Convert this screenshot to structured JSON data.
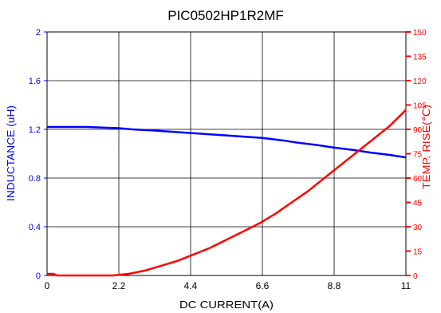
{
  "chart_data": {
    "type": "line",
    "title": "PIC0502HP1R2MF",
    "xlabel": "DC CURRENT(A)",
    "ylabel_left": "INDUCTANCE (uH)",
    "ylabel_right": "TEMP. RISE(℃)",
    "xlim": [
      0,
      11
    ],
    "ylim_left": [
      0,
      2
    ],
    "ylim_right": [
      0,
      150
    ],
    "x_ticks": [
      "0",
      "2.2",
      "4.4",
      "6.6",
      "8.8",
      "11"
    ],
    "y_left_ticks": [
      "0",
      "0.4",
      "0.8",
      "1.2",
      "1.6",
      "2"
    ],
    "y_right_ticks": [
      "0",
      "15",
      "30",
      "45",
      "60",
      "75",
      "90",
      "105",
      "120",
      "135",
      "150"
    ],
    "grid": true,
    "colors": {
      "inductance": "#0000ff",
      "temp_rise": "#ff0000",
      "axis": "#000000"
    },
    "series": [
      {
        "axis": "left",
        "x": [
          0,
          1.2,
          2.2,
          2.6,
          3.3,
          4.4,
          5.5,
          6.6,
          7.2,
          7.7,
          8.3,
          8.8,
          9.4,
          9.9,
          10.5,
          11
        ],
        "values": [
          1.22,
          1.22,
          1.21,
          1.2,
          1.19,
          1.17,
          1.15,
          1.13,
          1.11,
          1.09,
          1.07,
          1.05,
          1.03,
          1.01,
          0.99,
          0.97
        ]
      },
      {
        "axis": "right",
        "x": [
          0,
          0.2,
          0.3,
          1,
          2,
          2.5,
          3,
          3.5,
          4,
          4.5,
          5,
          5.5,
          6,
          6.5,
          7,
          7.5,
          8,
          8.5,
          9,
          9.5,
          10,
          10.5,
          11
        ],
        "values": [
          1,
          1,
          0,
          0,
          0,
          1,
          3,
          6,
          9,
          13,
          17,
          22,
          27,
          32,
          38,
          45,
          52,
          60,
          68,
          76,
          84,
          92,
          102
        ]
      }
    ]
  }
}
